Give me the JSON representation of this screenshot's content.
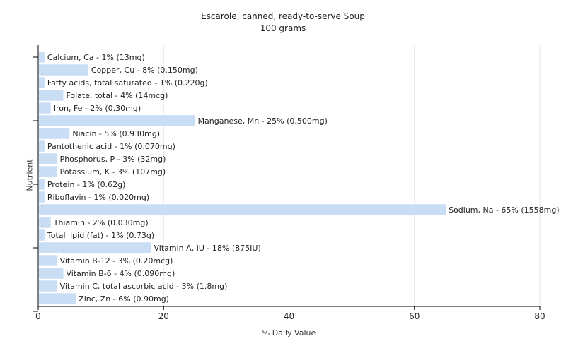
{
  "chart_data": {
    "type": "bar",
    "orientation": "horizontal",
    "title": "Escarole, canned, ready-to-serve Soup",
    "subtitle": "100 grams",
    "xlabel": "% Daily Value",
    "ylabel": "Nutrient",
    "xlim": [
      0,
      80
    ],
    "xticks": [
      0,
      20,
      40,
      60,
      80
    ],
    "grid": true,
    "bar_color": "#c9ddf5",
    "categories": [
      "Calcium, Ca",
      "Copper, Cu",
      "Fatty acids, total saturated",
      "Folate, total",
      "Iron, Fe",
      "Manganese, Mn",
      "Niacin",
      "Pantothenic acid",
      "Phosphorus, P",
      "Potassium, K",
      "Protein",
      "Riboflavin",
      "Sodium, Na",
      "Thiamin",
      "Total lipid (fat)",
      "Vitamin A, IU",
      "Vitamin B-12",
      "Vitamin B-6",
      "Vitamin C, total ascorbic acid",
      "Zinc, Zn"
    ],
    "values": [
      1,
      8,
      1,
      4,
      2,
      25,
      5,
      1,
      3,
      3,
      1,
      1,
      65,
      2,
      1,
      18,
      3,
      4,
      3,
      6
    ],
    "labels": [
      "Calcium, Ca - 1% (13mg)",
      "Copper, Cu - 8% (0.150mg)",
      "Fatty acids, total saturated - 1% (0.220g)",
      "Folate, total - 4% (14mcg)",
      "Iron, Fe - 2% (0.30mg)",
      "Manganese, Mn - 25% (0.500mg)",
      "Niacin - 5% (0.930mg)",
      "Pantothenic acid - 1% (0.070mg)",
      "Phosphorus, P - 3% (32mg)",
      "Potassium, K - 3% (107mg)",
      "Protein - 1% (0.62g)",
      "Riboflavin - 1% (0.020mg)",
      "Sodium, Na - 65% (1558mg)",
      "Thiamin - 2% (0.030mg)",
      "Total lipid (fat) - 1% (0.73g)",
      "Vitamin A, IU - 18% (875IU)",
      "Vitamin B-12 - 3% (0.20mcg)",
      "Vitamin B-6 - 4% (0.090mg)",
      "Vitamin C, total ascorbic acid - 3% (1.8mg)",
      "Zinc, Zn - 6% (0.90mg)"
    ]
  }
}
